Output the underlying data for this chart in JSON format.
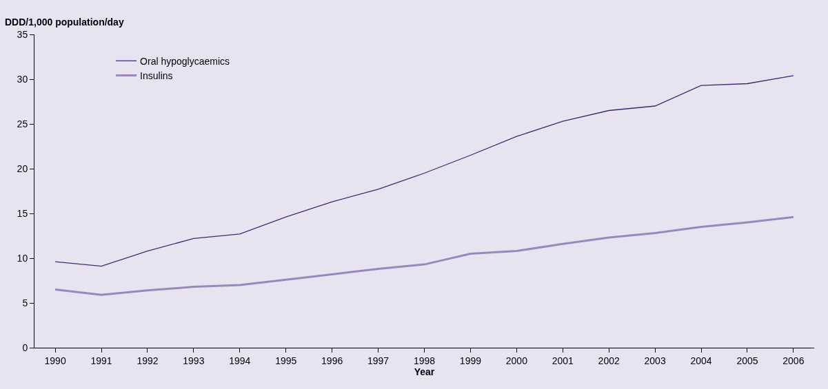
{
  "chart_data": {
    "type": "line",
    "ylabel": "DDD/1,000 population/day",
    "xlabel": "Year",
    "categories": [
      "1990",
      "1991",
      "1992",
      "1993",
      "1994",
      "1995",
      "1996",
      "1997",
      "1998",
      "1999",
      "2000",
      "2001",
      "2002",
      "2003",
      "2004",
      "2005",
      "2006"
    ],
    "series": [
      {
        "name": "Oral hypoglycaemics",
        "color": "#3d2a6e",
        "values": [
          9.6,
          9.1,
          10.8,
          12.2,
          12.7,
          14.6,
          16.3,
          17.7,
          19.5,
          21.5,
          23.6,
          25.3,
          26.5,
          27.0,
          29.3,
          29.5,
          30.4
        ]
      },
      {
        "name": "Insulins",
        "color": "#9b88bb",
        "values": [
          6.5,
          5.9,
          6.4,
          6.8,
          7.0,
          7.6,
          8.2,
          8.8,
          9.3,
          10.5,
          10.8,
          11.6,
          12.3,
          12.8,
          13.5,
          14.0,
          14.6
        ]
      }
    ],
    "ylim": [
      0,
      35
    ],
    "yticks": [
      0,
      5,
      10,
      15,
      20,
      25,
      30,
      35
    ],
    "grid": false,
    "legend": "top left",
    "marker": "none",
    "line_style": "solid"
  }
}
